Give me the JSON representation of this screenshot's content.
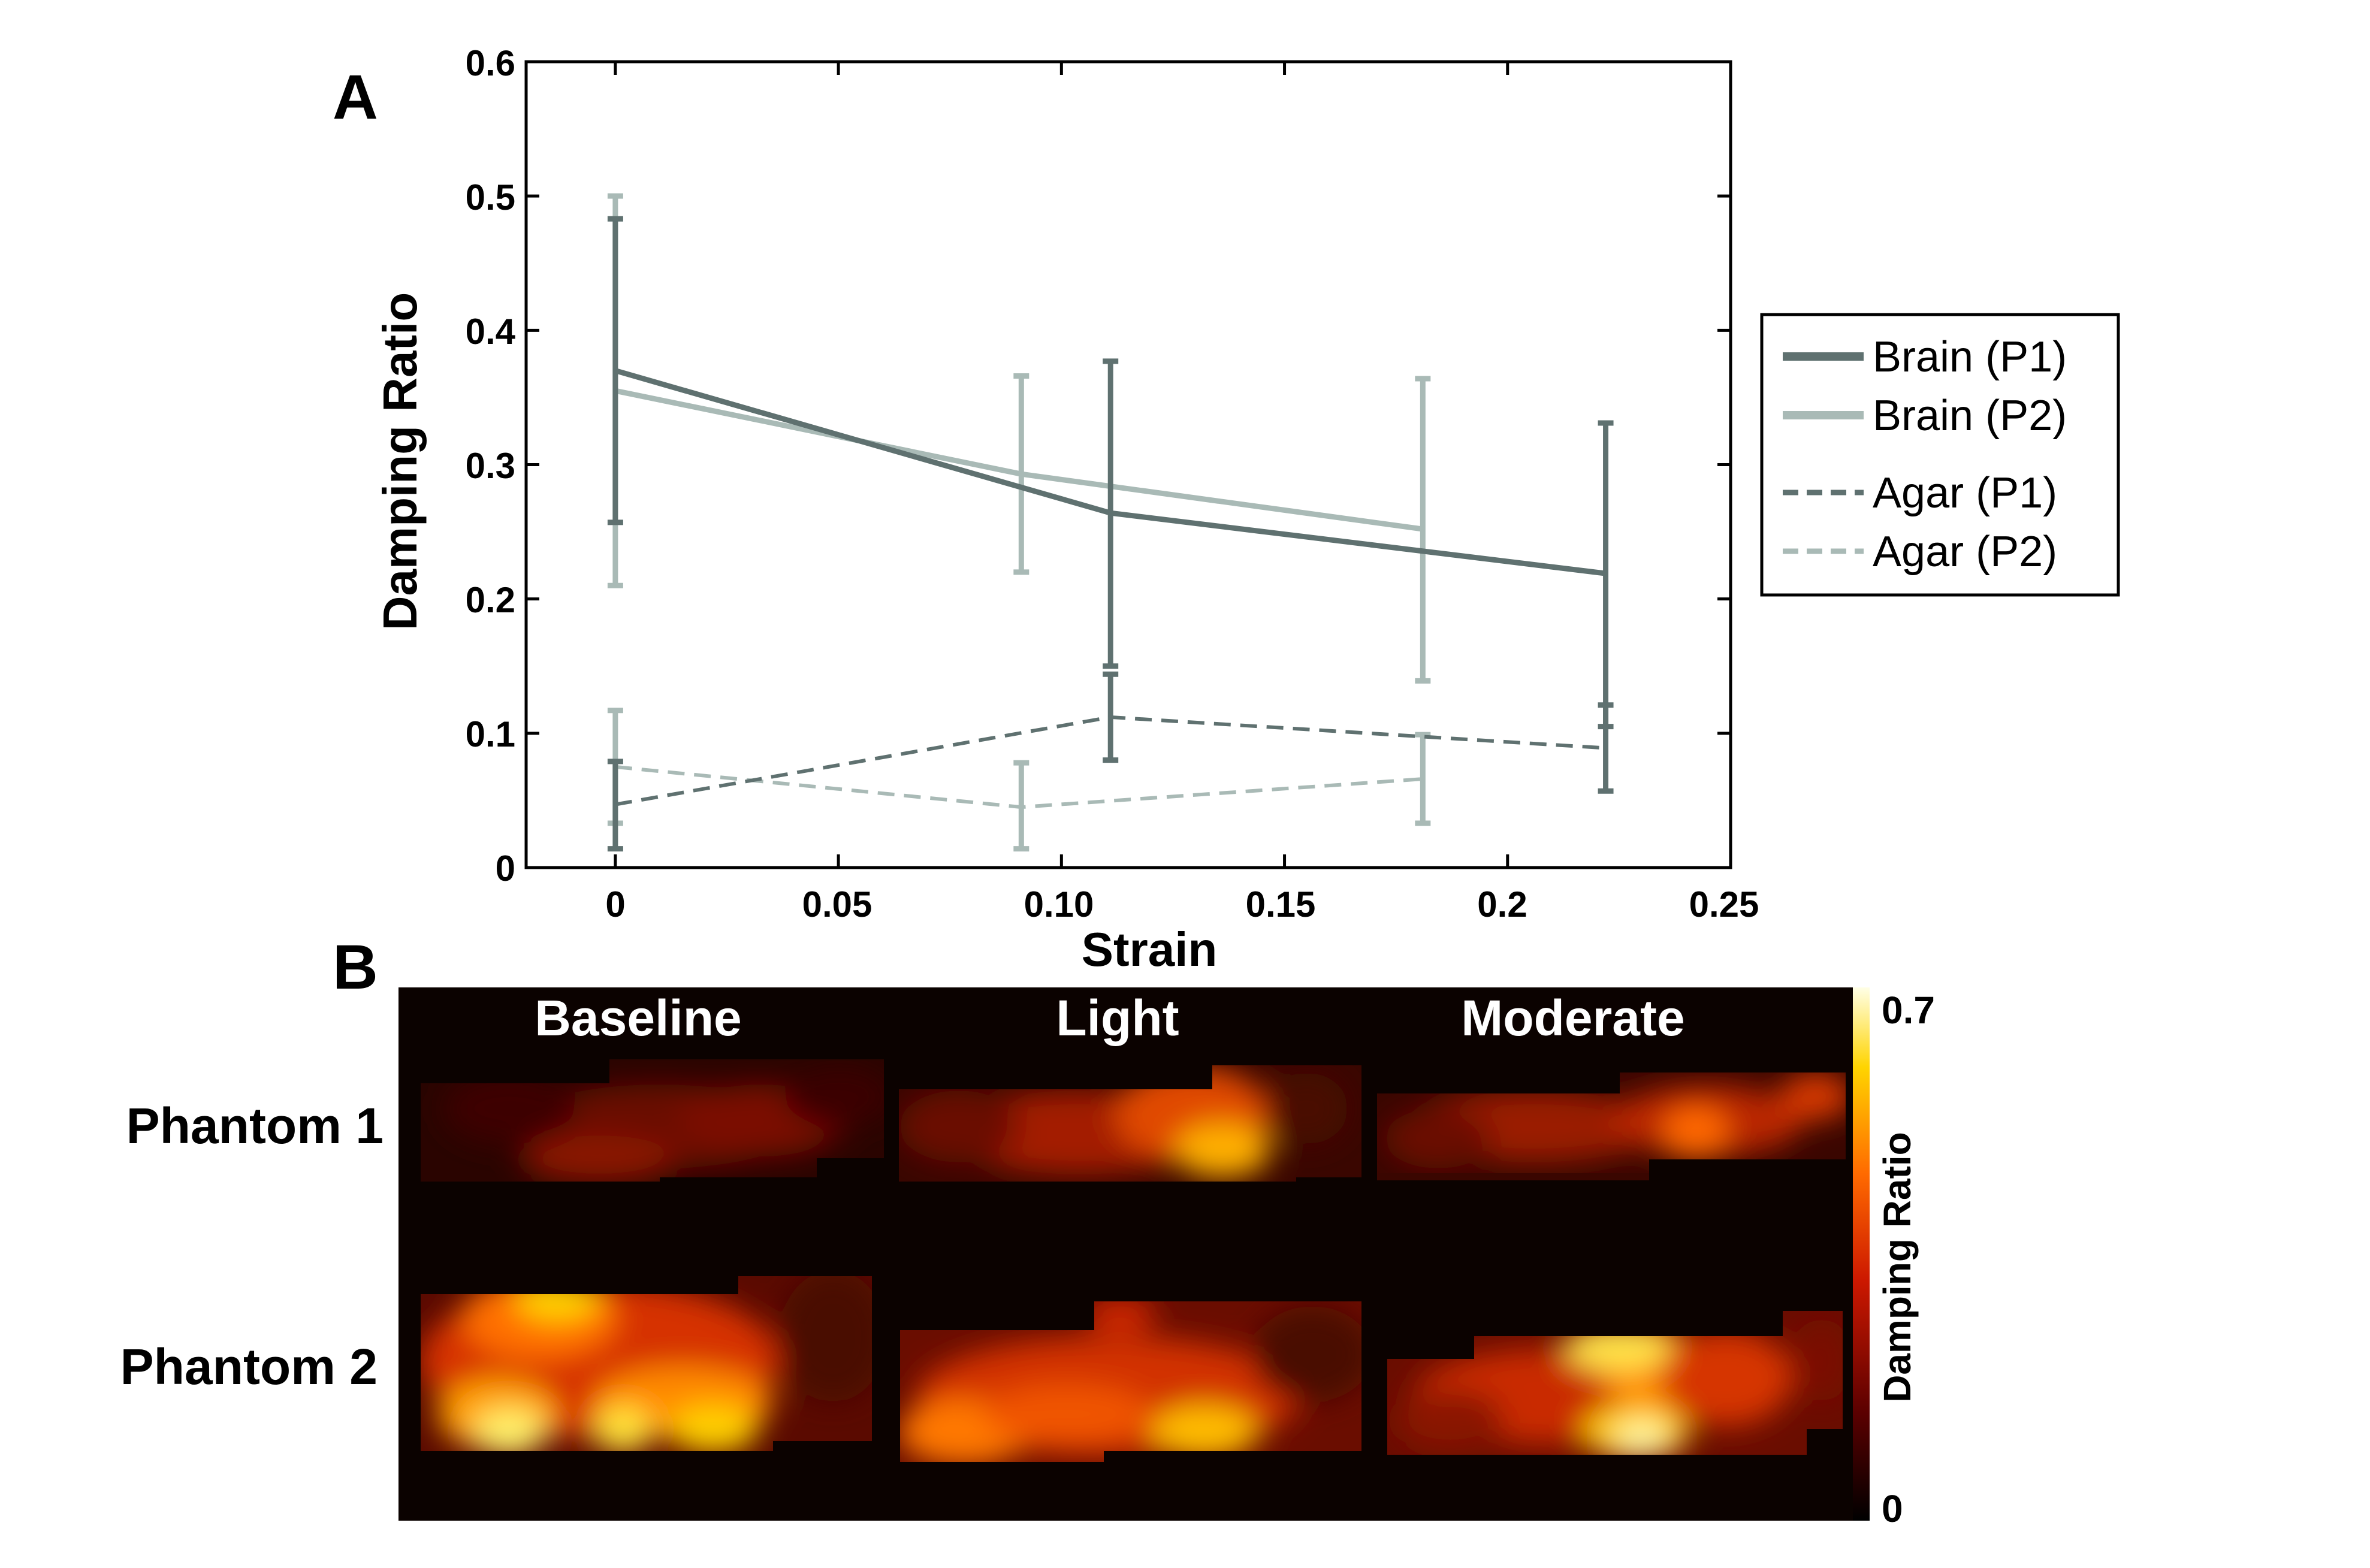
{
  "colors": {
    "brain_p1": "#5f7170",
    "brain_p2": "#a9bab6",
    "agar_p1": "#5f7170",
    "agar_p2": "#a9bab6",
    "axis": "#000000",
    "heat_bg": "#0b0200"
  },
  "panel_a": {
    "label": "A",
    "xlabel": "Strain",
    "ylabel": "Damping Ratio",
    "x_tick_labels": [
      "0",
      "0.05",
      "0.10",
      "0.15",
      "0.2",
      "0.25"
    ],
    "y_tick_labels": [
      "0",
      "0.1",
      "0.2",
      "0.3",
      "0.4",
      "0.5",
      "0.6"
    ]
  },
  "panel_b": {
    "label": "B",
    "column_titles": [
      "Baseline",
      "Light",
      "Moderate"
    ],
    "row_labels": [
      "Phantom 1",
      "Phantom 2"
    ],
    "colorbar": {
      "label": "Damping Ratio",
      "max_label": "0.7",
      "min_label": "0",
      "range": [
        0,
        0.7
      ]
    }
  },
  "chart_data": {
    "type": "line",
    "title": "",
    "xlabel": "Strain",
    "ylabel": "Damping Ratio",
    "xlim": [
      -0.02,
      0.25
    ],
    "ylim": [
      0,
      0.6
    ],
    "x_ticks": [
      0,
      0.05,
      0.1,
      0.15,
      0.2,
      0.25
    ],
    "y_ticks": [
      0,
      0.1,
      0.2,
      0.3,
      0.4,
      0.5,
      0.6
    ],
    "legend_position": "right",
    "series": [
      {
        "key": "brain_p1",
        "name": "Brain (P1)",
        "style": "solid",
        "x": [
          0,
          0.111,
          0.222
        ],
        "y": [
          0.37,
          0.264,
          0.219
        ],
        "err_low": [
          0.257,
          0.15,
          0.105
        ],
        "err_high": [
          0.483,
          0.377,
          0.331
        ]
      },
      {
        "key": "brain_p2",
        "name": "Brain (P2)",
        "style": "solid",
        "x": [
          0,
          0.091,
          0.181
        ],
        "y": [
          0.355,
          0.293,
          0.252
        ],
        "err_low": [
          0.21,
          0.22,
          0.139
        ],
        "err_high": [
          0.5,
          0.366,
          0.364
        ]
      },
      {
        "key": "agar_p1",
        "name": "Agar (P1)",
        "style": "dashed",
        "x": [
          0,
          0.111,
          0.222
        ],
        "y": [
          0.047,
          0.112,
          0.089
        ],
        "err_low": [
          0.014,
          0.08,
          0.057
        ],
        "err_high": [
          0.079,
          0.144,
          0.121
        ]
      },
      {
        "key": "agar_p2",
        "name": "Agar (P2)",
        "style": "dashed",
        "x": [
          0,
          0.091,
          0.181
        ],
        "y": [
          0.075,
          0.045,
          0.066
        ],
        "err_low": [
          0.033,
          0.014,
          0.033
        ],
        "err_high": [
          0.117,
          0.078,
          0.099
        ]
      }
    ]
  }
}
